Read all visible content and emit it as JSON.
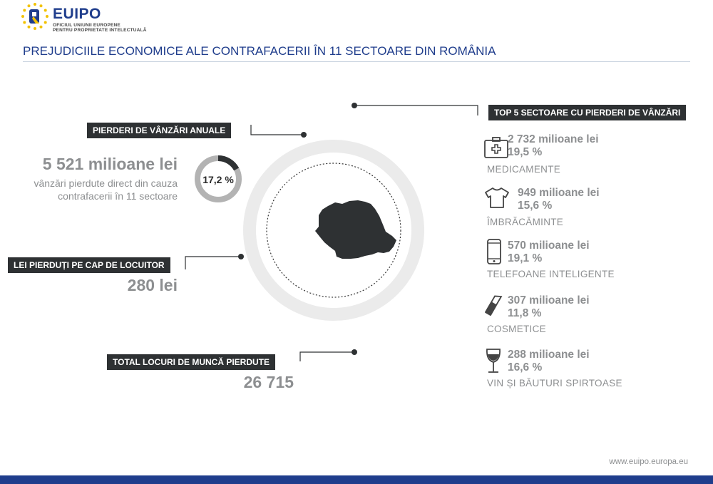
{
  "logo": {
    "name_eu": "EU",
    "name_ipo": "IPO",
    "sub_line1": "OFICIUL UNIUNII EUROPENE",
    "sub_line2": "PENTRU PROPRIETATE INTELECTUALĂ"
  },
  "title": "PREJUDICIILE ECONOMICE ALE CONTRAFACERII ÎN 11 SECTOARE DIN ROMÂNIA",
  "annual_losses": {
    "label": "PIERDERI DE VÂNZĂRI ANUALE",
    "value": "5 521 milioane lei",
    "desc_line1": "vânzări pierdute direct din cauza",
    "desc_line2": "contrafacerii în 11 sectoare",
    "percent_text": "17,2 %",
    "percent_value": 17.2
  },
  "per_capita": {
    "label": "LEI PIERDUȚI PE CAP DE LOCUITOR",
    "value": "280 lei"
  },
  "jobs": {
    "label": "TOTAL LOCURI DE MUNCĂ PIERDUTE",
    "value": "26 715"
  },
  "top_sectors": {
    "label": "TOP 5 SECTOARE CU PIERDERI DE VÂNZĂRI",
    "items": [
      {
        "value": "2 732 milioane lei",
        "percent": "19,5 %",
        "name": "MEDICAMENTE",
        "icon": "medical-kit-icon"
      },
      {
        "value": "949 milioane lei",
        "percent": "15,6 %",
        "name": "ÎMBRĂCĂMINTE",
        "icon": "tshirt-icon"
      },
      {
        "value": "570 milioane lei",
        "percent": "19,1 %",
        "name": "TELEFOANE INTELIGENTE",
        "icon": "smartphone-icon"
      },
      {
        "value": "307 milioane lei",
        "percent": "11,8 %",
        "name": "COSMETICE",
        "icon": "lipstick-icon"
      },
      {
        "value": "288 milioane lei",
        "percent": "16,6 %",
        "name": "VIN ȘI BĂUTURI SPIRTOASE",
        "icon": "wine-glass-icon"
      }
    ]
  },
  "footer": {
    "url": "www.euipo.europa.eu"
  },
  "colors": {
    "brand_blue": "#1f3d8c",
    "dark": "#2e3133",
    "gray": "#8d8f91",
    "ring": "#ebebeb",
    "star_yellow": "#f2c200"
  }
}
